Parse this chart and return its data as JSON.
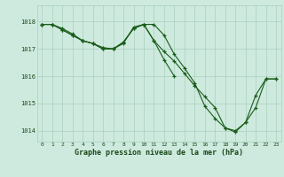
{
  "title": "Graphe pression niveau de la mer (hPa)",
  "bg_color": "#ceeade",
  "grid_color": "#aacfbe",
  "line_color": "#1a5c1a",
  "xlim": [
    -0.5,
    23.5
  ],
  "ylim": [
    1013.6,
    1018.6
  ],
  "yticks": [
    1014,
    1015,
    1016,
    1017,
    1018
  ],
  "xtick_labels": [
    "0",
    "1",
    "2",
    "3",
    "4",
    "5",
    "6",
    "7",
    "8",
    "9",
    "10",
    "11",
    "12",
    "13",
    "14",
    "15",
    "16",
    "17",
    "18",
    "19",
    "20",
    "21",
    "22",
    "23"
  ],
  "line1_x": [
    0,
    1,
    2,
    3,
    4,
    5,
    6,
    7,
    8,
    9,
    10,
    11,
    12,
    13,
    14,
    15,
    16,
    17,
    18,
    19,
    20,
    21,
    22,
    23
  ],
  "line1_y": [
    1017.9,
    1017.9,
    1017.75,
    1017.55,
    1017.3,
    1017.2,
    1017.05,
    1017.0,
    1017.2,
    1017.8,
    1017.9,
    1017.9,
    1017.5,
    1016.8,
    1016.3,
    1015.75,
    1014.9,
    1014.45,
    1014.1,
    1013.95,
    1014.3,
    1014.85,
    1015.9,
    1015.9
  ],
  "line2_x": [
    0,
    1,
    2,
    3,
    4,
    5,
    6,
    7,
    8,
    9,
    10,
    11,
    12,
    13,
    14,
    15,
    16,
    17,
    18,
    19,
    20,
    21,
    22,
    23
  ],
  "line2_y": [
    1017.9,
    1017.9,
    1017.7,
    1017.5,
    1017.3,
    1017.2,
    1017.0,
    1017.0,
    1017.25,
    1017.75,
    1017.9,
    1017.3,
    1016.9,
    1016.55,
    1016.1,
    1015.65,
    1015.25,
    1014.85,
    1014.1,
    1014.0,
    1014.3,
    1015.3,
    1015.9,
    1015.9
  ],
  "line3_x": [
    0,
    1,
    2,
    3,
    4,
    5,
    6,
    7,
    8,
    9,
    10,
    11,
    12,
    13
  ],
  "line3_y": [
    1017.9,
    1017.9,
    1017.7,
    1017.5,
    1017.3,
    1017.2,
    1017.0,
    1017.0,
    1017.25,
    1017.75,
    1017.9,
    1017.3,
    1016.6,
    1016.0
  ]
}
